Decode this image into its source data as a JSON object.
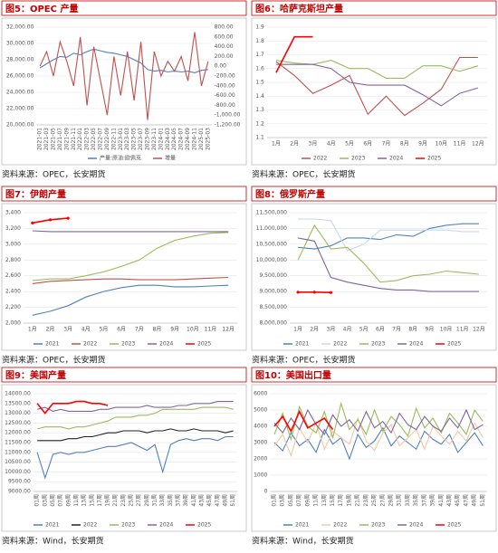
{
  "chart_data": [
    {
      "type": "line",
      "title": "图5：OPEC 产量",
      "source": "资料来源：OPEC，长安期货",
      "categories": [
        "2021-01",
        "2021-03",
        "2021-05",
        "2021-07",
        "2021-09",
        "2021-11",
        "2022-01",
        "2022-03",
        "2022-05",
        "2022-07",
        "2022-09",
        "2022-11",
        "2023-01",
        "2023-03",
        "2023-05",
        "2023-07",
        "2023-09",
        "2023-11",
        "2024-01",
        "2024-03",
        "2024-05",
        "2024-07",
        "2024-09",
        "2024-11",
        "2025-01",
        "2025-03"
      ],
      "ylim": [
        20000,
        32000
      ],
      "yticks": [
        {
          "value": 20000,
          "label": "20,000.00"
        },
        {
          "value": 22000,
          "label": "22,000.00"
        },
        {
          "value": 24000,
          "label": "24,000.00"
        },
        {
          "value": 26000,
          "label": "26,000.00"
        },
        {
          "value": 28000,
          "label": "28,000.00"
        },
        {
          "value": 30000,
          "label": "30,000.00"
        },
        {
          "value": 32000,
          "label": "32,000.00"
        }
      ],
      "y2lim": [
        -1200,
        800
      ],
      "y2ticks": [
        {
          "value": -1200,
          "label": "-1,200.00"
        },
        {
          "value": -1000,
          "label": "-1,000.00"
        },
        {
          "value": -800,
          "label": "-800.00"
        },
        {
          "value": -600,
          "label": "-600.00"
        },
        {
          "value": -400,
          "label": "-400.00"
        },
        {
          "value": -200,
          "label": "-200.00"
        },
        {
          "value": 0,
          "label": "0.00"
        },
        {
          "value": 200,
          "label": "200.00"
        },
        {
          "value": 400,
          "label": "400.00"
        },
        {
          "value": 600,
          "label": "600.00"
        },
        {
          "value": 800,
          "label": "800.00"
        }
      ],
      "series": [
        {
          "name": "产量:原油:欧佩克",
          "color": "#4f81bd",
          "values": [
            27000,
            27500,
            28000,
            28400,
            28300,
            28800,
            28600,
            29000,
            29300,
            29100,
            28900,
            28800,
            28600,
            28400,
            28000,
            27600,
            26800,
            26600,
            26700,
            26500,
            26600,
            26500,
            26600,
            26400,
            26700,
            26800
          ]
        },
        {
          "name": "增量",
          "color": "#c0504d",
          "axis": "y2",
          "values": [
            0,
            300,
            -200,
            500,
            100,
            -400,
            600,
            -800,
            400,
            -300,
            -1000,
            200,
            -600,
            300,
            -700,
            500,
            -1100,
            300,
            -200,
            100,
            -100,
            200,
            -300,
            700,
            -400,
            100
          ]
        }
      ]
    },
    {
      "type": "line",
      "title": "图6：哈萨克斯坦产量",
      "source": "资料来源：OPEC，长安期货",
      "categories": [
        "1月",
        "2月",
        "3月",
        "4月",
        "5月",
        "6月",
        "7月",
        "8月",
        "9月",
        "10月",
        "11月",
        "12月"
      ],
      "ylim": [
        1.1,
        1.9
      ],
      "yticks": [
        1.1,
        1.2,
        1.3,
        1.4,
        1.5,
        1.6,
        1.7,
        1.8,
        1.9
      ],
      "series": [
        {
          "name": "2022",
          "color": "#c0504d",
          "values": [
            1.65,
            1.55,
            1.42,
            1.48,
            1.55,
            1.27,
            1.4,
            1.26,
            1.35,
            1.45,
            1.68,
            1.68
          ]
        },
        {
          "name": "2023",
          "color": "#9bbb59",
          "values": [
            1.66,
            1.64,
            1.63,
            1.66,
            1.6,
            1.6,
            1.53,
            1.53,
            1.62,
            1.62,
            1.58,
            1.62
          ]
        },
        {
          "name": "2024",
          "color": "#8064a2",
          "values": [
            1.63,
            1.63,
            1.63,
            1.6,
            1.5,
            1.48,
            1.48,
            1.48,
            1.41,
            1.33,
            1.42,
            1.46
          ]
        },
        {
          "name": "2025",
          "color": "#ff0000",
          "values": [
            1.57,
            1.83,
            1.83,
            null,
            null,
            null,
            null,
            null,
            null,
            null,
            null,
            null
          ]
        }
      ]
    },
    {
      "type": "line",
      "title": "图7：伊朗产量",
      "source": "资料来源：OPEC，长安期货",
      "categories": [
        "1月",
        "2月",
        "3月",
        "4月",
        "5月",
        "6月",
        "7月",
        "8月",
        "9月",
        "10月",
        "11月",
        "12月"
      ],
      "ylim": [
        2000,
        3400
      ],
      "yticks": [
        {
          "value": 2000,
          "label": "2,000"
        },
        {
          "value": 2200,
          "label": "2,200"
        },
        {
          "value": 2400,
          "label": "2,400"
        },
        {
          "value": 2600,
          "label": "2,600"
        },
        {
          "value": 2800,
          "label": "2,800"
        },
        {
          "value": 3000,
          "label": "3,000"
        },
        {
          "value": 3200,
          "label": "3,200"
        },
        {
          "value": 3400,
          "label": "3,400"
        }
      ],
      "series": [
        {
          "name": "2021",
          "color": "#4f81bd",
          "values": [
            2100,
            2150,
            2220,
            2330,
            2400,
            2450,
            2480,
            2480,
            2460,
            2460,
            2470,
            2480
          ]
        },
        {
          "name": "2022",
          "color": "#c0504d",
          "values": [
            2500,
            2530,
            2540,
            2550,
            2560,
            2560,
            2550,
            2550,
            2550,
            2560,
            2570,
            2580
          ]
        },
        {
          "name": "2023",
          "color": "#9bbb59",
          "values": [
            2540,
            2560,
            2560,
            2600,
            2650,
            2720,
            2800,
            2950,
            3050,
            3100,
            3140,
            3150
          ]
        },
        {
          "name": "2024",
          "color": "#8064a2",
          "values": [
            3170,
            3160,
            3160,
            3160,
            3160,
            3160,
            3160,
            3160,
            3160,
            3160,
            3160,
            3160
          ]
        },
        {
          "name": "2025",
          "color": "#ff0000",
          "marker": true,
          "values": [
            3270,
            3310,
            3330,
            null,
            null,
            null,
            null,
            null,
            null,
            null,
            null,
            null
          ]
        }
      ]
    },
    {
      "type": "line",
      "title": "图8：俄罗斯产量",
      "source": "资料来源：OPEC，长安期货",
      "categories": [
        "1月",
        "2月",
        "3月",
        "4月",
        "5月",
        "6月",
        "7月",
        "8月",
        "9月",
        "10月",
        "11月",
        "12月"
      ],
      "ylim": [
        8000000,
        11500000
      ],
      "yticks": [
        {
          "value": 8000000,
          "label": "8,000,000"
        },
        {
          "value": 8500000,
          "label": "8,500,000"
        },
        {
          "value": 9000000,
          "label": "9,000,000"
        },
        {
          "value": 9500000,
          "label": "9,500,000"
        },
        {
          "value": 10000000,
          "label": "10,000,000"
        },
        {
          "value": 10500000,
          "label": "10,500,000"
        },
        {
          "value": 11000000,
          "label": "11,000,000"
        },
        {
          "value": 11500000,
          "label": "11,500,000"
        }
      ],
      "series": [
        {
          "name": "2021",
          "color": "#4f81bd",
          "values": [
            10400000,
            10350000,
            10450000,
            10700000,
            10700000,
            10650000,
            10800000,
            10750000,
            11000000,
            11100000,
            11150000,
            11150000
          ]
        },
        {
          "name": "2022",
          "color": "#c6d9f1",
          "values": [
            11300000,
            11300000,
            11250000,
            10300000,
            10500000,
            10950000,
            10950000,
            10950000,
            10950000,
            10950000,
            10900000,
            10900000
          ]
        },
        {
          "name": "2023",
          "color": "#9bbb59",
          "values": [
            10000000,
            11100000,
            10350000,
            10400000,
            9900000,
            9300000,
            9350000,
            9500000,
            9550000,
            9650000,
            9600000,
            9550000
          ]
        },
        {
          "name": "2024",
          "color": "#8064a2",
          "values": [
            10700000,
            10600000,
            9450000,
            9300000,
            9200000,
            9100000,
            9050000,
            9050000,
            9000000,
            9000000,
            9000000,
            9000000
          ]
        },
        {
          "name": "2025",
          "color": "#ff0000",
          "marker": true,
          "values": [
            8980000,
            8980000,
            8970000,
            null,
            null,
            null,
            null,
            null,
            null,
            null,
            null,
            null
          ]
        }
      ]
    },
    {
      "type": "line",
      "title": "图9：美国产量",
      "source": "资料来源：Wind，长安期货",
      "categories": [
        "01周",
        "03周",
        "05周",
        "07周",
        "09周",
        "11周",
        "13周",
        "15周",
        "17周",
        "19周",
        "21周",
        "23周",
        "25周",
        "27周",
        "29周",
        "31周",
        "33周",
        "35周",
        "37周",
        "39周",
        "41周",
        "43周",
        "45周",
        "47周",
        "49周",
        "51周"
      ],
      "ylim": [
        9000,
        14000
      ],
      "yticks": [
        {
          "value": 9000,
          "label": "9000.00"
        },
        {
          "value": 9500,
          "label": "9500.00"
        },
        {
          "value": 10000,
          "label": "10000.00"
        },
        {
          "value": 10500,
          "label": "10500.00"
        },
        {
          "value": 11000,
          "label": "11000.00"
        },
        {
          "value": 11500,
          "label": "11500.00"
        },
        {
          "value": 12000,
          "label": "12000.00"
        },
        {
          "value": 12500,
          "label": "12500.00"
        },
        {
          "value": 13000,
          "label": "13000.00"
        },
        {
          "value": 13500,
          "label": "13500.00"
        },
        {
          "value": 14000,
          "label": "14000.00"
        }
      ],
      "series": [
        {
          "name": "2021",
          "color": "#4f81bd",
          "values": [
            11000,
            9700,
            10900,
            11000,
            10900,
            11000,
            11000,
            11100,
            11200,
            11300,
            11300,
            11400,
            11500,
            11300,
            11100,
            11400,
            10000,
            11400,
            11600,
            11700,
            11600,
            11700,
            11700,
            11600,
            11800,
            11800
          ]
        },
        {
          "name": "2022",
          "color": "#222222",
          "values": [
            11600,
            11600,
            11600,
            11600,
            11700,
            11700,
            11800,
            11800,
            11900,
            12000,
            12000,
            12100,
            12100,
            12100,
            12000,
            12100,
            12100,
            12200,
            12100,
            12100,
            12200,
            12100,
            12100,
            12100,
            12000,
            12100
          ]
        },
        {
          "name": "2023",
          "color": "#9bbb59",
          "values": [
            12200,
            12300,
            12300,
            12300,
            12200,
            12300,
            12300,
            12400,
            12500,
            12600,
            12800,
            12800,
            12800,
            12900,
            12900,
            13000,
            13200,
            13200,
            13200,
            13200,
            13200,
            13300,
            13300,
            13300,
            13300,
            13200
          ]
        },
        {
          "name": "2024",
          "color": "#8064a2",
          "values": [
            13200,
            13300,
            13100,
            13200,
            13100,
            13100,
            13100,
            13100,
            13200,
            13200,
            13300,
            13300,
            13300,
            13300,
            13400,
            13300,
            13300,
            13300,
            13400,
            13400,
            13500,
            13500,
            13500,
            13600,
            13600,
            13600
          ]
        },
        {
          "name": "2025",
          "color": "#ff0000",
          "values": [
            13500,
            13000,
            13500,
            13500,
            13500,
            13600,
            13600,
            13500,
            13500,
            13400,
            null,
            null,
            null,
            null,
            null,
            null,
            null,
            null,
            null,
            null,
            null,
            null,
            null,
            null,
            null,
            null
          ]
        }
      ]
    },
    {
      "type": "line",
      "title": "图10：美国出口量",
      "source": "资料来源：Wind，长安期货",
      "categories": [
        "01周",
        "03周",
        "05周",
        "07周",
        "09周",
        "11周",
        "13周",
        "15周",
        "17周",
        "19周",
        "21周",
        "23周",
        "25周",
        "27周",
        "29周",
        "31周",
        "33周",
        "35周",
        "37周",
        "39周",
        "41周",
        "43周",
        "45周",
        "47周",
        "49周",
        "51周"
      ],
      "ylim": [
        0,
        6000
      ],
      "yticks": [
        0,
        1000,
        2000,
        3000,
        4000,
        5000,
        6000
      ],
      "series": [
        {
          "name": "2021",
          "color": "#4f81bd",
          "values": [
            3000,
            2500,
            3600,
            2800,
            3200,
            2400,
            3800,
            2900,
            3300,
            2000,
            3500,
            2700,
            3100,
            3900,
            2800,
            3400,
            3000,
            2600,
            3700,
            3200,
            2900,
            3500,
            2400,
            3000,
            3600,
            2800
          ]
        },
        {
          "name": "2022",
          "color": "#f4c7a1",
          "values": [
            2800,
            3500,
            2200,
            3900,
            3000,
            4200,
            2600,
            3700,
            3300,
            2900,
            4500,
            3100,
            2500,
            3600,
            4100,
            2800,
            3300,
            3800,
            2600,
            4000,
            3400,
            2900,
            3700,
            3100,
            4200,
            3300
          ]
        },
        {
          "name": "2023",
          "color": "#9bbb59",
          "values": [
            3500,
            4800,
            3200,
            5200,
            4000,
            3600,
            4900,
            3300,
            5400,
            3800,
            4400,
            3500,
            5000,
            3700,
            4600,
            4100,
            3400,
            5100,
            3900,
            4500,
            3600,
            4800,
            4200,
            3500,
            5000,
            4300
          ]
        },
        {
          "name": "2024",
          "color": "#8064a2",
          "values": [
            4200,
            3600,
            4500,
            3800,
            5000,
            4100,
            3500,
            4700,
            4000,
            4400,
            3700,
            4900,
            3900,
            4300,
            3600,
            4800,
            4100,
            3800,
            4600,
            4000,
            3700,
            4500,
            3900,
            5000,
            3800,
            4100
          ]
        },
        {
          "name": "2025",
          "color": "#ff0000",
          "values": [
            4000,
            4600,
            3700,
            4900,
            3900,
            4200,
            4500,
            3800,
            null,
            null,
            null,
            null,
            null,
            null,
            null,
            null,
            null,
            null,
            null,
            null,
            null,
            null,
            null,
            null,
            null,
            null
          ]
        }
      ]
    }
  ]
}
